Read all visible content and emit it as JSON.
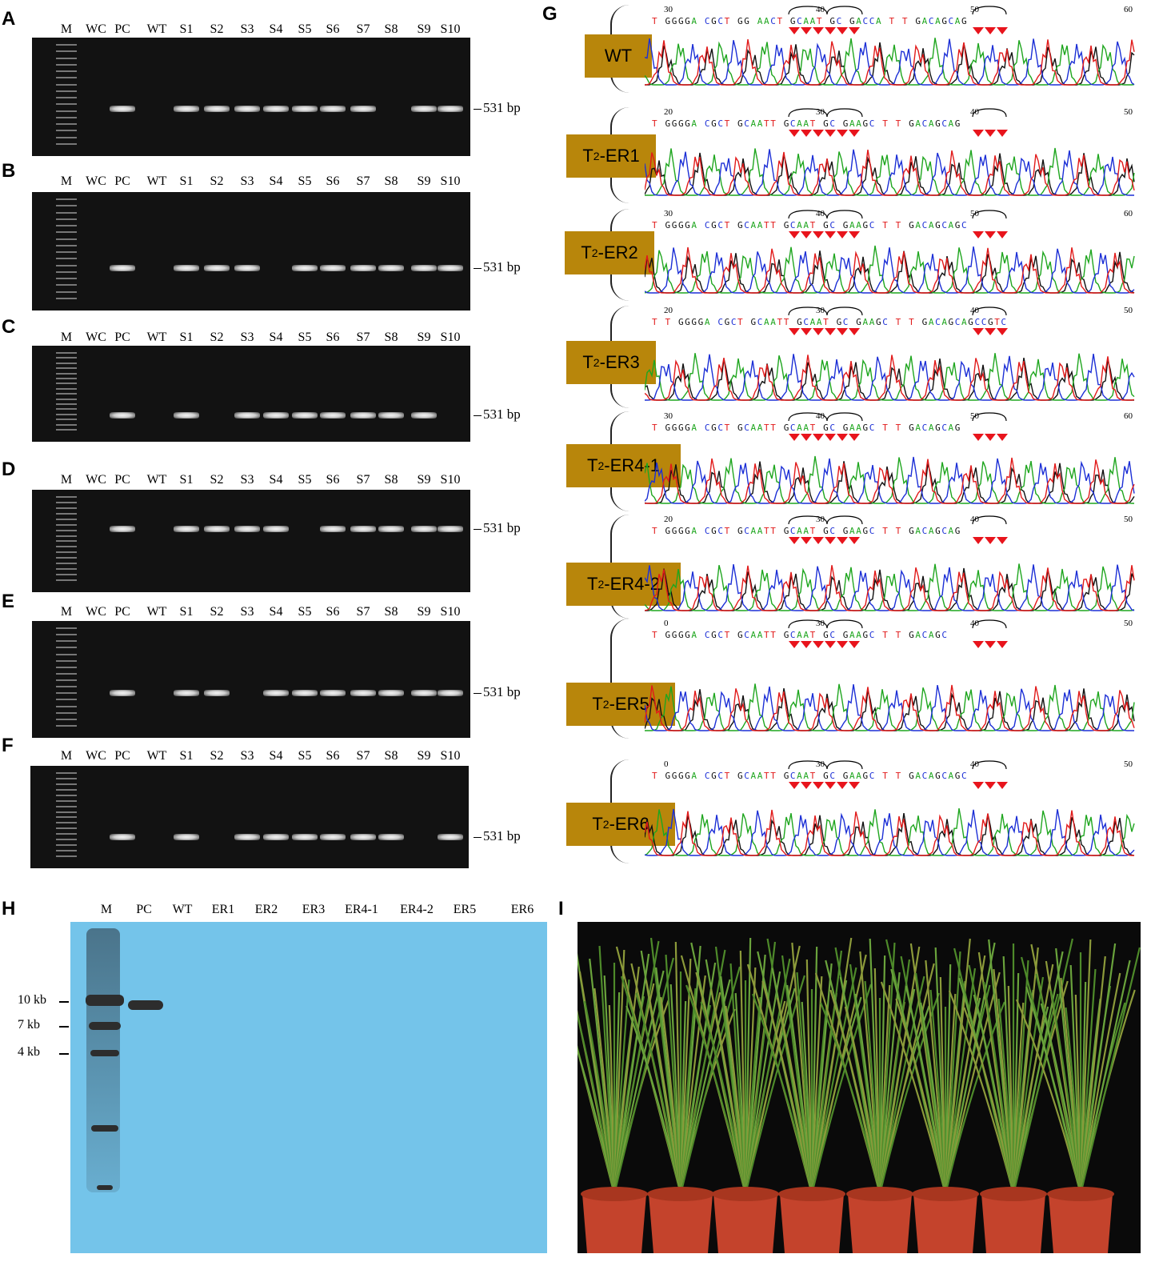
{
  "panel_letters": {
    "a": "A",
    "b": "B",
    "c": "C",
    "d": "D",
    "e": "E",
    "f": "F",
    "g": "G",
    "h": "H",
    "i": "I"
  },
  "gel_lanes": [
    "M",
    "WC",
    "PC",
    "WT",
    "S1",
    "S2",
    "S3",
    "S4",
    "S5",
    "S6",
    "S7",
    "S8",
    "S9",
    "S10"
  ],
  "band_size_label": "531 bp",
  "gels": [
    {
      "panel": "A",
      "bands": [
        false,
        false,
        true,
        false,
        true,
        true,
        true,
        true,
        true,
        true,
        true,
        false,
        true,
        true
      ]
    },
    {
      "panel": "B",
      "bands": [
        false,
        false,
        true,
        false,
        true,
        true,
        true,
        false,
        true,
        true,
        true,
        true,
        true,
        true
      ]
    },
    {
      "panel": "C",
      "bands": [
        false,
        false,
        true,
        false,
        true,
        false,
        true,
        true,
        true,
        true,
        true,
        true,
        true,
        false
      ]
    },
    {
      "panel": "D",
      "bands": [
        false,
        false,
        true,
        false,
        true,
        true,
        true,
        true,
        false,
        true,
        true,
        true,
        true,
        true
      ]
    },
    {
      "panel": "E",
      "bands": [
        false,
        false,
        true,
        false,
        true,
        true,
        false,
        true,
        true,
        true,
        true,
        true,
        true,
        true
      ]
    },
    {
      "panel": "F",
      "bands": [
        false,
        false,
        true,
        false,
        true,
        false,
        true,
        true,
        true,
        true,
        true,
        true,
        false,
        true
      ]
    }
  ],
  "chromatograms": [
    {
      "label": "WT",
      "label_html": false,
      "seq": "T GGGGA CGCT GG AACT GCAAT GC GACCA T T GACAGCAG",
      "positions": [
        "30",
        "40",
        "50",
        "60"
      ]
    },
    {
      "label": "T",
      "sub": "2",
      "suffix": "-ER1",
      "seq": "T GGGGA CGCT GCAATT GCAAT GC GAAGC T T GACAGCAG",
      "positions": [
        "20",
        "30",
        "40",
        "50"
      ]
    },
    {
      "label": "T",
      "sub": "2",
      "suffix": "-ER2",
      "seq": "T GGGGA CGCT GCAATT GCAAT GC GAAGC T T GACAGCAGC",
      "positions": [
        "30",
        "40",
        "50",
        "60"
      ]
    },
    {
      "label": "T",
      "sub": "2",
      "suffix": "-ER3",
      "seq": "T T GGGGA CGCT GCAATT GCAAT GC GAAGC T T GACAGCAGCCGTC",
      "positions": [
        "20",
        "30",
        "40",
        "50"
      ]
    },
    {
      "label": "T",
      "sub": "2",
      "suffix": "-ER4-1",
      "seq": "T GGGGA CGCT GCAATT GCAAT GC GAAGC T T GACAGCAG",
      "positions": [
        "30",
        "40",
        "50",
        "60"
      ]
    },
    {
      "label": "T",
      "sub": "2",
      "suffix": "-ER4-2",
      "seq": "T GGGGA CGCT GCAATT GCAAT GC GAAGC T T GACAGCAG",
      "positions": [
        "20",
        "30",
        "40",
        "50"
      ]
    },
    {
      "label": "T",
      "sub": "2",
      "suffix": "-ER5",
      "seq": "T GGGGA CGCT GCAATT GCAAT GC GAAGC T T GACAGC",
      "positions": [
        "0",
        "30",
        "40",
        "50"
      ]
    },
    {
      "label": "T",
      "sub": "2",
      "suffix": "-ER6",
      "seq": "T GGGGA CGCT GCAATT GCAAT GC GAAGC T T GACAGCAGC",
      "positions": [
        "0",
        "30",
        "40",
        "50"
      ]
    }
  ],
  "southern": {
    "lanes": [
      "M",
      "PC",
      "WT",
      "ER1",
      "ER2",
      "ER3",
      "ER4-1",
      "ER4-2",
      "ER5",
      "ER6"
    ],
    "size_markers": [
      "10 kb",
      "7 kb",
      "4 kb"
    ]
  },
  "colors": {
    "tag": "#b8860b",
    "blot": "#74c4ea",
    "gel": "#121212",
    "arrow": "#e8141c"
  }
}
